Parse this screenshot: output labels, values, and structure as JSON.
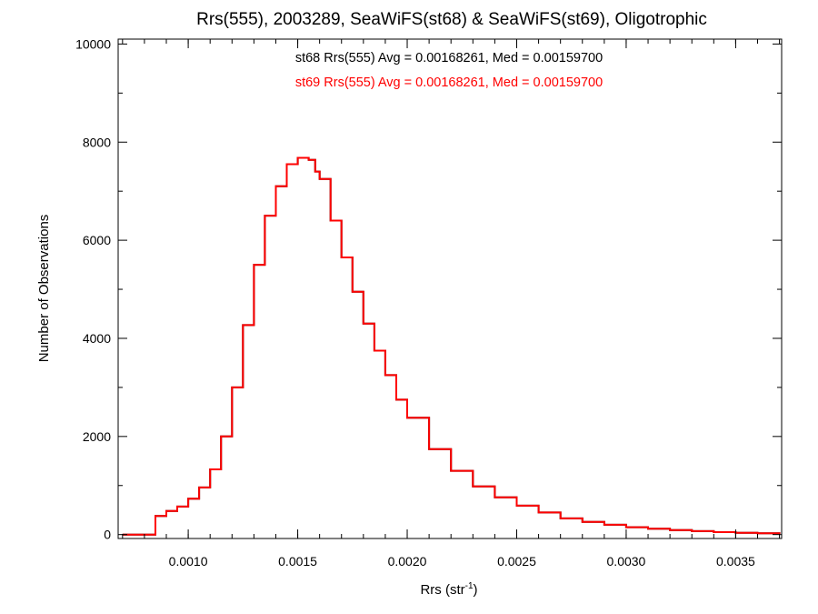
{
  "chart_data": {
    "type": "step-histogram",
    "title": "Rrs(555), 2003289, SeaWiFS(st68) & SeaWiFS(st69), Oligotrophic",
    "xlabel": {
      "base": "Rrs (str",
      "sup": "-1",
      "close": ")"
    },
    "ylabel": "Number of Observations",
    "xlim": [
      0.00068,
      0.00371
    ],
    "ylim": [
      -80,
      10100
    ],
    "x_ticks": [
      0.001,
      0.0015,
      0.002,
      0.0025,
      0.003,
      0.0035
    ],
    "x_tick_labels": [
      "0.0010",
      "0.0015",
      "0.0020",
      "0.0025",
      "0.0030",
      "0.0035"
    ],
    "y_ticks": [
      0,
      2000,
      4000,
      6000,
      8000,
      10000
    ],
    "y_tick_labels": [
      "0",
      "2000",
      "4000",
      "6000",
      "8000",
      "10000"
    ],
    "annotations": [
      {
        "text": "st68 Rrs(555) Avg = 0.00168261, Med = 0.00159700",
        "color": "#000000"
      },
      {
        "text": "st69 Rrs(555) Avg = 0.00168261, Med = 0.00159700",
        "color": "#ff0000"
      }
    ],
    "series": [
      {
        "name": "st68",
        "color": "#000000",
        "x": [
          0.0007,
          0.0008,
          0.00085,
          0.0009,
          0.00095,
          0.001,
          0.00105,
          0.0011,
          0.00115,
          0.0012,
          0.00125,
          0.0013,
          0.00135,
          0.0014,
          0.00145,
          0.0015,
          0.00153,
          0.00155,
          0.00158,
          0.0016,
          0.00165,
          0.0017,
          0.00175,
          0.0018,
          0.00185,
          0.0019,
          0.00195,
          0.002,
          0.0021,
          0.0022,
          0.0023,
          0.0024,
          0.0025,
          0.0026,
          0.0027,
          0.0028,
          0.0029,
          0.003,
          0.0031,
          0.0032,
          0.0033,
          0.0034,
          0.0035,
          0.0036,
          0.0037
        ],
        "y": [
          0,
          0,
          380,
          480,
          570,
          730,
          960,
          1330,
          2000,
          3000,
          4270,
          5500,
          6500,
          7100,
          7550,
          7680,
          7680,
          7640,
          7400,
          7250,
          6400,
          5650,
          4950,
          4300,
          3750,
          3250,
          2750,
          2380,
          1740,
          1300,
          980,
          760,
          590,
          450,
          330,
          260,
          200,
          150,
          120,
          90,
          70,
          50,
          35,
          25,
          15
        ]
      },
      {
        "name": "st69",
        "color": "#ff0000",
        "x": [
          0.0007,
          0.0008,
          0.00085,
          0.0009,
          0.00095,
          0.001,
          0.00105,
          0.0011,
          0.00115,
          0.0012,
          0.00125,
          0.0013,
          0.00135,
          0.0014,
          0.00145,
          0.0015,
          0.00153,
          0.00155,
          0.00158,
          0.0016,
          0.00165,
          0.0017,
          0.00175,
          0.0018,
          0.00185,
          0.0019,
          0.00195,
          0.002,
          0.0021,
          0.0022,
          0.0023,
          0.0024,
          0.0025,
          0.0026,
          0.0027,
          0.0028,
          0.0029,
          0.003,
          0.0031,
          0.0032,
          0.0033,
          0.0034,
          0.0035,
          0.0036,
          0.0037
        ],
        "y": [
          0,
          0,
          380,
          480,
          570,
          730,
          960,
          1330,
          2000,
          3000,
          4270,
          5500,
          6500,
          7100,
          7550,
          7680,
          7680,
          7640,
          7400,
          7250,
          6400,
          5650,
          4950,
          4300,
          3750,
          3250,
          2750,
          2380,
          1740,
          1300,
          980,
          760,
          590,
          450,
          330,
          260,
          200,
          150,
          120,
          90,
          70,
          50,
          35,
          25,
          15
        ]
      }
    ],
    "grid": false,
    "legend": "none"
  }
}
